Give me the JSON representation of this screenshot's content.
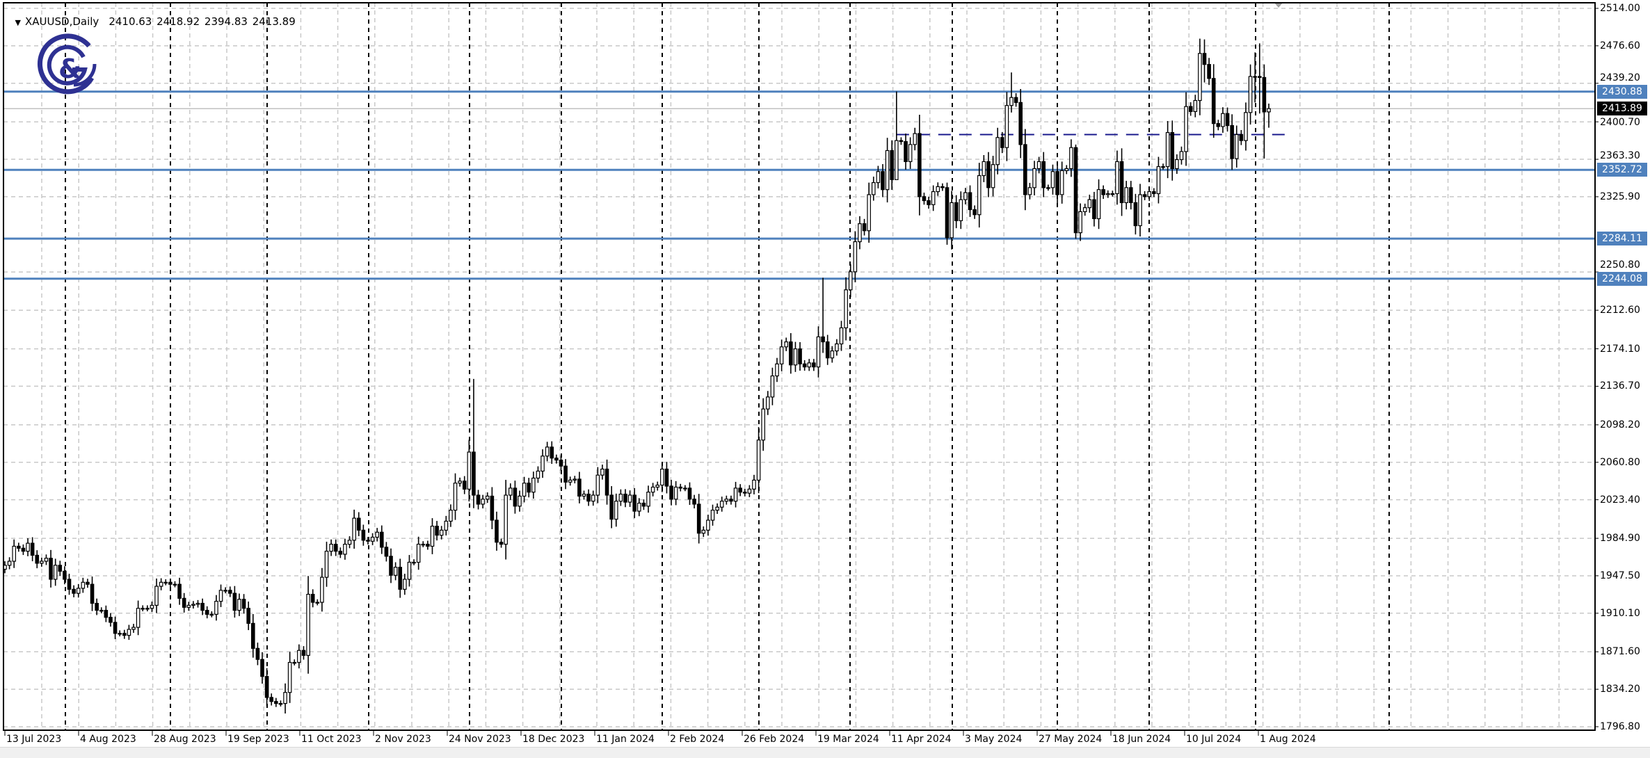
{
  "header": {
    "symbol_timeframe": "XAUUSD,Daily",
    "ohlc": "2410.63 2418.92 2394.83 2413.89",
    "menu_icon": "triangle-down-icon"
  },
  "logo": {
    "text": "G&",
    "color": "#2e3192"
  },
  "colors": {
    "level_line": "#4f81bd",
    "current_price_line": "#c0c0c0",
    "current_price_badge": "#000000",
    "dashed_level": "#1a1a8c",
    "bull_candle": "#ffffff",
    "bear_candle": "#000000"
  },
  "chart_data": {
    "type": "candlestick",
    "timeframe": "Daily",
    "ylim": [
      1796.8,
      2514.0
    ],
    "grid": true,
    "price_axis_labels": [
      "2514.00",
      "2476.60",
      "2439.20",
      "2400.70",
      "2363.30",
      "2325.90",
      "2250.80",
      "2212.60",
      "2174.10",
      "2136.70",
      "2098.20",
      "2060.80",
      "2023.40",
      "1984.90",
      "1947.50",
      "1910.10",
      "1871.60",
      "1834.20",
      "1796.80"
    ],
    "date_labels": [
      "13 Jul 2023",
      "4 Aug 2023",
      "28 Aug 2023",
      "19 Sep 2023",
      "11 Oct 2023",
      "2 Nov 2023",
      "24 Nov 2023",
      "18 Dec 2023",
      "11 Jan 2024",
      "2 Feb 2024",
      "26 Feb 2024",
      "19 Mar 2024",
      "11 Apr 2024",
      "3 May 2024",
      "27 May 2024",
      "18 Jun 2024",
      "10 Jul 2024",
      "1 Aug 2024"
    ],
    "last_bar": {
      "open": 2410.63,
      "high": 2418.92,
      "low": 2394.83,
      "close": 2413.89
    },
    "current_price": "2413.89",
    "horizontal_levels": [
      "2430.88",
      "2352.72",
      "2284.11",
      "2244.08"
    ],
    "dashed_level": 2388,
    "bars_close_or_close_high_low": [
      1958,
      1962,
      1977,
      1975,
      1972,
      1980,
      1968,
      1960,
      1962,
      1965,
      1944,
      1958,
      1952,
      1944,
      1934,
      1930,
      1935,
      1941,
      1939,
      1920,
      1913,
      1913,
      1906,
      1901,
      1890,
      1890,
      1888,
      1894,
      1896,
      1915,
      1915,
      1915,
      1918,
      1937,
      1941,
      1941,
      1939,
      1939,
      1925,
      1916,
      1918,
      1919,
      1920,
      1913,
      1909,
      1909,
      1922,
      1933,
      1933,
      1930,
      1913,
      1924,
      1915,
      1900,
      1875,
      1864,
      1847,
      1826,
      1822,
      1820,
      1820,
      [
        1831,
        1840,
        1810
      ],
      1861,
      1861,
      1873,
      1868,
      1929,
      1921,
      1921,
      1946,
      1972,
      1979,
      1972,
      1969,
      1979,
      1983,
      2005,
      1993,
      1983,
      1982,
      1986,
      1991,
      1976,
      1967,
      1948,
      1956,
      1934,
      1944,
      1961,
      1961,
      1979,
      1979,
      1977,
      1997,
      1988,
      1993,
      2002,
      2013,
      2040,
      2042,
      2034,
      2071,
      [
        2028,
        2144,
        2015
      ],
      2019,
      2024,
      2027,
      2003,
      1981,
      1979,
      2028,
      2035,
      2017,
      2027,
      2040,
      2031,
      2045,
      2052,
      2067,
      2076,
      2065,
      2063,
      2057,
      2041,
      2043,
      2044,
      2027,
      2029,
      2022,
      2028,
      2048,
      2054,
      2028,
      2004,
      2022,
      2029,
      2021,
      2028,
      2012,
      2020,
      2017,
      2031,
      2036,
      2038,
      2054,
      2037,
      2024,
      2036,
      2035,
      2035,
      2024,
      2019,
      1990,
      1993,
      2003,
      2013,
      2016,
      2022,
      2024,
      2022,
      2035,
      2031,
      2030,
      2034,
      2043,
      2083,
      2114,
      2126,
      2147,
      2159,
      2176,
      2181,
      2158,
      2174,
      2159,
      2156,
      2160,
      2156,
      2186,
      [
        2181,
        2245,
        2170
      ],
      2165,
      2172,
      2179,
      2195,
      2233,
      2251,
      2281,
      2299,
      2292,
      2328,
      2340,
      2351,
      2333,
      2372,
      2343,
      [
        2382,
        2431,
        2368
      ],
      2381,
      2361,
      2378,
      2389,
      2326,
      2322,
      2318,
      2331,
      2336,
      2335,
      [
        2285,
        2340,
        2278
      ],
      2320,
      2302,
      2323,
      2330,
      2313,
      2308,
      2347,
      2361,
      2335,
      2358,
      2385,
      2375,
      2417,
      [
        2425,
        2450,
        2410
      ],
      2420,
      2378,
      2328,
      2335,
      2354,
      2361,
      2335,
      2335,
      2351,
      2328,
      2352,
      2354,
      2375,
      [
        2290,
        2378,
        2284
      ],
      2311,
      2315,
      2323,
      2304,
      2333,
      2328,
      2329,
      2329,
      2361,
      2320,
      2335,
      2320,
      2297,
      2328,
      2326,
      2331,
      2329,
      2356,
      2356,
      2390,
      2354,
      2363,
      2371,
      2416,
      2411,
      2422,
      2469,
      [
        2458,
        2483,
        2440
      ],
      2444,
      2399,
      2396,
      2409,
      2397,
      2364,
      2388,
      2382,
      2410,
      2446,
      [
        2446,
        2470,
        2420
      ],
      [
        2445,
        2479,
        2409
      ],
      [
        2410.63,
        2458,
        2364
      ],
      [
        2413.89,
        2418.92,
        2394.83
      ]
    ]
  }
}
